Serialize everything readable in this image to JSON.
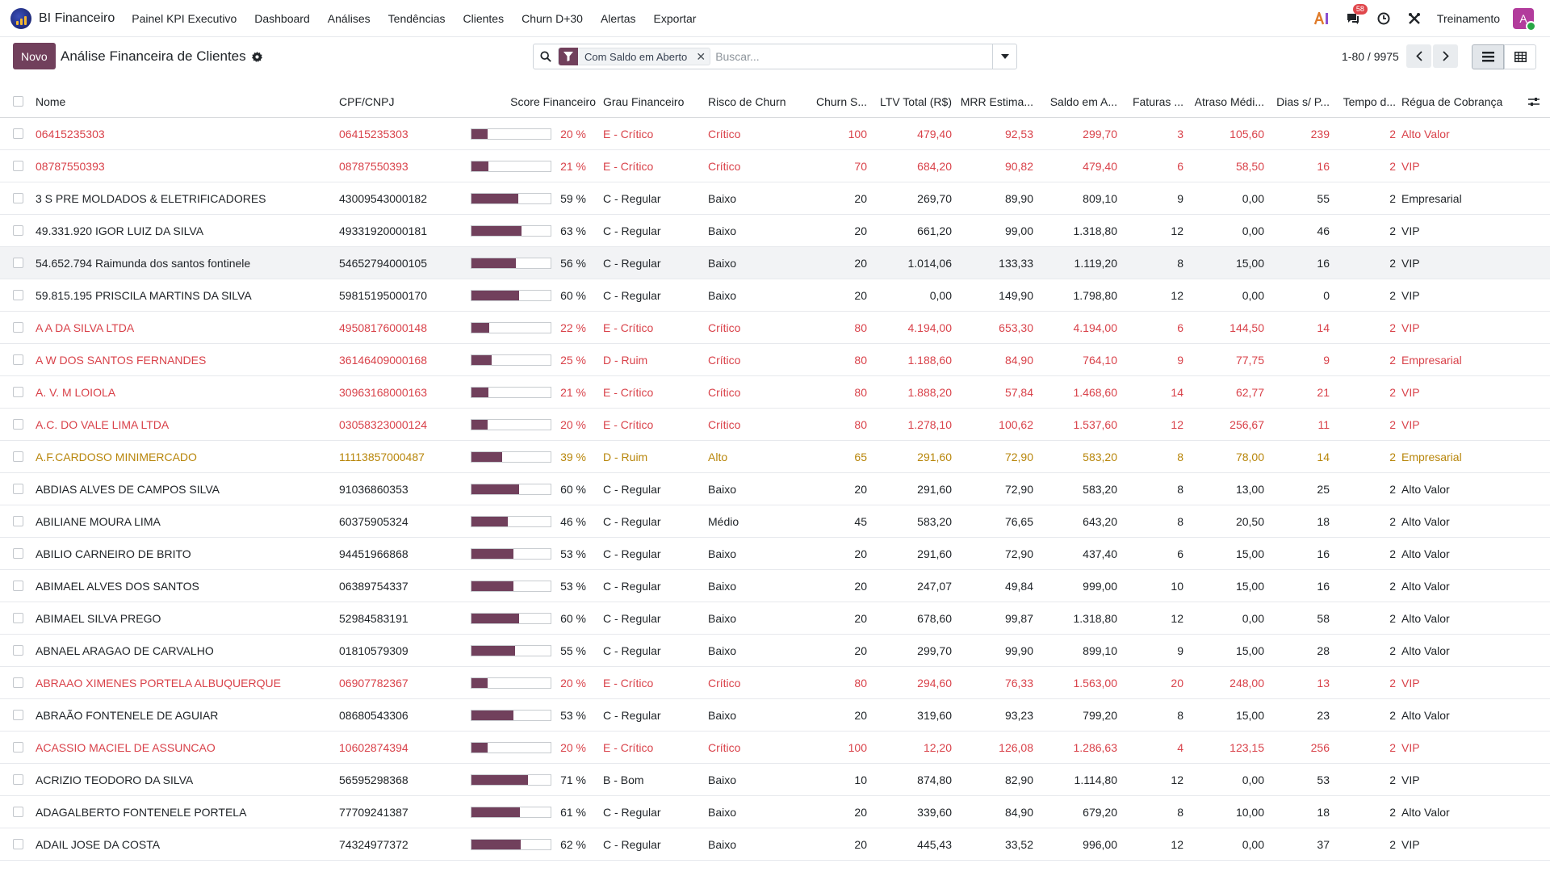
{
  "navbar": {
    "app_name": "BI Financeiro",
    "menu": [
      "Painel KPI Executivo",
      "Dashboard",
      "Análises",
      "Tendências",
      "Clientes",
      "Churn D+30",
      "Alertas",
      "Exportar"
    ],
    "messages_badge": "58",
    "company": "Treinamento",
    "avatar_letter": "A"
  },
  "control": {
    "new_label": "Novo",
    "title": "Análise Financeira de Clientes",
    "facet_label": "Com Saldo em Aberto",
    "search_placeholder": "Buscar...",
    "pager": "1-80 / 9975"
  },
  "columns": [
    "Nome",
    "CPF/CNPJ",
    "Score Financeiro",
    "Grau Financeiro",
    "Risco de Churn",
    "Churn S...",
    "LTV Total (R$)",
    "MRR Estima...",
    "Saldo em A...",
    "Faturas ...",
    "Atraso Médi...",
    "Dias s/ P...",
    "Tempo d...",
    "Régua de Cobrança"
  ],
  "colors": {
    "primary": "#71405c",
    "danger": "#d9424a",
    "warning": "#b8860b"
  },
  "rows": [
    {
      "nome": "06415235303",
      "doc": "06415235303",
      "score": 20,
      "score_label": "20 %",
      "grau": "E - Crítico",
      "risco": "Crítico",
      "churn": "100",
      "ltv": "479,40",
      "mrr": "92,53",
      "saldo": "299,70",
      "faturas": "3",
      "atraso": "105,60",
      "dias": "239",
      "tempo": "2",
      "regua": "Alto Valor",
      "status": "danger"
    },
    {
      "nome": "08787550393",
      "doc": "08787550393",
      "score": 21,
      "score_label": "21 %",
      "grau": "E - Crítico",
      "risco": "Crítico",
      "churn": "70",
      "ltv": "684,20",
      "mrr": "90,82",
      "saldo": "479,40",
      "faturas": "6",
      "atraso": "58,50",
      "dias": "16",
      "tempo": "2",
      "regua": "VIP",
      "status": "danger"
    },
    {
      "nome": "3 S PRE MOLDADOS & ELETRIFICADORES",
      "doc": "43009543000182",
      "score": 59,
      "score_label": "59 %",
      "grau": "C - Regular",
      "risco": "Baixo",
      "churn": "20",
      "ltv": "269,70",
      "mrr": "89,90",
      "saldo": "809,10",
      "faturas": "9",
      "atraso": "0,00",
      "dias": "55",
      "tempo": "2",
      "regua": "Empresarial",
      "status": ""
    },
    {
      "nome": "49.331.920 IGOR LUIZ DA SILVA",
      "doc": "49331920000181",
      "score": 63,
      "score_label": "63 %",
      "grau": "C - Regular",
      "risco": "Baixo",
      "churn": "20",
      "ltv": "661,20",
      "mrr": "99,00",
      "saldo": "1.318,80",
      "faturas": "12",
      "atraso": "0,00",
      "dias": "46",
      "tempo": "2",
      "regua": "VIP",
      "status": ""
    },
    {
      "nome": "54.652.794 Raimunda dos santos fontinele",
      "doc": "54652794000105",
      "score": 56,
      "score_label": "56 %",
      "grau": "C - Regular",
      "risco": "Baixo",
      "churn": "20",
      "ltv": "1.014,06",
      "mrr": "133,33",
      "saldo": "1.119,20",
      "faturas": "8",
      "atraso": "15,00",
      "dias": "16",
      "tempo": "2",
      "regua": "VIP",
      "status": "",
      "hover": true
    },
    {
      "nome": "59.815.195 PRISCILA MARTINS DA SILVA",
      "doc": "59815195000170",
      "score": 60,
      "score_label": "60 %",
      "grau": "C - Regular",
      "risco": "Baixo",
      "churn": "20",
      "ltv": "0,00",
      "mrr": "149,90",
      "saldo": "1.798,80",
      "faturas": "12",
      "atraso": "0,00",
      "dias": "0",
      "tempo": "2",
      "regua": "VIP",
      "status": ""
    },
    {
      "nome": "A A DA SILVA LTDA",
      "doc": "49508176000148",
      "score": 22,
      "score_label": "22 %",
      "grau": "E - Crítico",
      "risco": "Crítico",
      "churn": "80",
      "ltv": "4.194,00",
      "mrr": "653,30",
      "saldo": "4.194,00",
      "faturas": "6",
      "atraso": "144,50",
      "dias": "14",
      "tempo": "2",
      "regua": "VIP",
      "status": "danger"
    },
    {
      "nome": "A W DOS SANTOS FERNANDES",
      "doc": "36146409000168",
      "score": 25,
      "score_label": "25 %",
      "grau": "D - Ruim",
      "risco": "Crítico",
      "churn": "80",
      "ltv": "1.188,60",
      "mrr": "84,90",
      "saldo": "764,10",
      "faturas": "9",
      "atraso": "77,75",
      "dias": "9",
      "tempo": "2",
      "regua": "Empresarial",
      "status": "danger"
    },
    {
      "nome": "A. V. M LOIOLA",
      "doc": "30963168000163",
      "score": 21,
      "score_label": "21 %",
      "grau": "E - Crítico",
      "risco": "Crítico",
      "churn": "80",
      "ltv": "1.888,20",
      "mrr": "57,84",
      "saldo": "1.468,60",
      "faturas": "14",
      "atraso": "62,77",
      "dias": "21",
      "tempo": "2",
      "regua": "VIP",
      "status": "danger"
    },
    {
      "nome": "A.C. DO VALE LIMA LTDA",
      "doc": "03058323000124",
      "score": 20,
      "score_label": "20 %",
      "grau": "E - Crítico",
      "risco": "Crítico",
      "churn": "80",
      "ltv": "1.278,10",
      "mrr": "100,62",
      "saldo": "1.537,60",
      "faturas": "12",
      "atraso": "256,67",
      "dias": "11",
      "tempo": "2",
      "regua": "VIP",
      "status": "danger"
    },
    {
      "nome": "A.F.CARDOSO MINIMERCADO",
      "doc": "11113857000487",
      "score": 39,
      "score_label": "39 %",
      "grau": "D - Ruim",
      "risco": "Alto",
      "churn": "65",
      "ltv": "291,60",
      "mrr": "72,90",
      "saldo": "583,20",
      "faturas": "8",
      "atraso": "78,00",
      "dias": "14",
      "tempo": "2",
      "regua": "Empresarial",
      "status": "warning"
    },
    {
      "nome": "ABDIAS ALVES DE CAMPOS SILVA",
      "doc": "91036860353",
      "score": 60,
      "score_label": "60 %",
      "grau": "C - Regular",
      "risco": "Baixo",
      "churn": "20",
      "ltv": "291,60",
      "mrr": "72,90",
      "saldo": "583,20",
      "faturas": "8",
      "atraso": "13,00",
      "dias": "25",
      "tempo": "2",
      "regua": "Alto Valor",
      "status": ""
    },
    {
      "nome": "ABILIANE MOURA LIMA",
      "doc": "60375905324",
      "score": 46,
      "score_label": "46 %",
      "grau": "C - Regular",
      "risco": "Médio",
      "churn": "45",
      "ltv": "583,20",
      "mrr": "76,65",
      "saldo": "643,20",
      "faturas": "8",
      "atraso": "20,50",
      "dias": "18",
      "tempo": "2",
      "regua": "Alto Valor",
      "status": ""
    },
    {
      "nome": "ABILIO CARNEIRO DE BRITO",
      "doc": "94451966868",
      "score": 53,
      "score_label": "53 %",
      "grau": "C - Regular",
      "risco": "Baixo",
      "churn": "20",
      "ltv": "291,60",
      "mrr": "72,90",
      "saldo": "437,40",
      "faturas": "6",
      "atraso": "15,00",
      "dias": "16",
      "tempo": "2",
      "regua": "Alto Valor",
      "status": ""
    },
    {
      "nome": "ABIMAEL ALVES DOS SANTOS",
      "doc": "06389754337",
      "score": 53,
      "score_label": "53 %",
      "grau": "C - Regular",
      "risco": "Baixo",
      "churn": "20",
      "ltv": "247,07",
      "mrr": "49,84",
      "saldo": "999,00",
      "faturas": "10",
      "atraso": "15,00",
      "dias": "16",
      "tempo": "2",
      "regua": "Alto Valor",
      "status": ""
    },
    {
      "nome": "ABIMAEL SILVA PREGO",
      "doc": "52984583191",
      "score": 60,
      "score_label": "60 %",
      "grau": "C - Regular",
      "risco": "Baixo",
      "churn": "20",
      "ltv": "678,60",
      "mrr": "99,87",
      "saldo": "1.318,80",
      "faturas": "12",
      "atraso": "0,00",
      "dias": "58",
      "tempo": "2",
      "regua": "Alto Valor",
      "status": ""
    },
    {
      "nome": "ABNAEL ARAGAO DE CARVALHO",
      "doc": "01810579309",
      "score": 55,
      "score_label": "55 %",
      "grau": "C - Regular",
      "risco": "Baixo",
      "churn": "20",
      "ltv": "299,70",
      "mrr": "99,90",
      "saldo": "899,10",
      "faturas": "9",
      "atraso": "15,00",
      "dias": "28",
      "tempo": "2",
      "regua": "Alto Valor",
      "status": ""
    },
    {
      "nome": "ABRAAO XIMENES PORTELA ALBUQUERQUE",
      "doc": "06907782367",
      "score": 20,
      "score_label": "20 %",
      "grau": "E - Crítico",
      "risco": "Crítico",
      "churn": "80",
      "ltv": "294,60",
      "mrr": "76,33",
      "saldo": "1.563,00",
      "faturas": "20",
      "atraso": "248,00",
      "dias": "13",
      "tempo": "2",
      "regua": "VIP",
      "status": "danger"
    },
    {
      "nome": "ABRAÃO FONTENELE DE AGUIAR",
      "doc": "08680543306",
      "score": 53,
      "score_label": "53 %",
      "grau": "C - Regular",
      "risco": "Baixo",
      "churn": "20",
      "ltv": "319,60",
      "mrr": "93,23",
      "saldo": "799,20",
      "faturas": "8",
      "atraso": "15,00",
      "dias": "23",
      "tempo": "2",
      "regua": "Alto Valor",
      "status": ""
    },
    {
      "nome": "ACASSIO MACIEL DE ASSUNCAO",
      "doc": "10602874394",
      "score": 20,
      "score_label": "20 %",
      "grau": "E - Crítico",
      "risco": "Crítico",
      "churn": "100",
      "ltv": "12,20",
      "mrr": "126,08",
      "saldo": "1.286,63",
      "faturas": "4",
      "atraso": "123,15",
      "dias": "256",
      "tempo": "2",
      "regua": "VIP",
      "status": "danger"
    },
    {
      "nome": "ACRIZIO TEODORO DA SILVA",
      "doc": "56595298368",
      "score": 71,
      "score_label": "71 %",
      "grau": "B - Bom",
      "risco": "Baixo",
      "churn": "10",
      "ltv": "874,80",
      "mrr": "82,90",
      "saldo": "1.114,80",
      "faturas": "12",
      "atraso": "0,00",
      "dias": "53",
      "tempo": "2",
      "regua": "VIP",
      "status": ""
    },
    {
      "nome": "ADAGALBERTO FONTENELE PORTELA",
      "doc": "77709241387",
      "score": 61,
      "score_label": "61 %",
      "grau": "C - Regular",
      "risco": "Baixo",
      "churn": "20",
      "ltv": "339,60",
      "mrr": "84,90",
      "saldo": "679,20",
      "faturas": "8",
      "atraso": "10,00",
      "dias": "18",
      "tempo": "2",
      "regua": "Alto Valor",
      "status": ""
    },
    {
      "nome": "ADAIL JOSE DA COSTA",
      "doc": "74324977372",
      "score": 62,
      "score_label": "62 %",
      "grau": "C - Regular",
      "risco": "Baixo",
      "churn": "20",
      "ltv": "445,43",
      "mrr": "33,52",
      "saldo": "996,00",
      "faturas": "12",
      "atraso": "0,00",
      "dias": "37",
      "tempo": "2",
      "regua": "VIP",
      "status": ""
    }
  ]
}
